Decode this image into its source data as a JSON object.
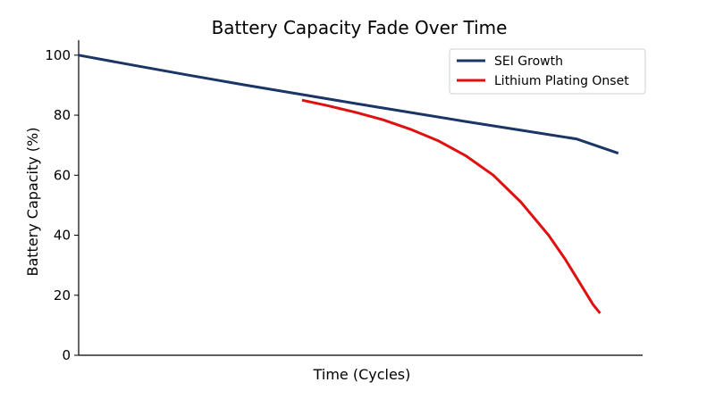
{
  "chart_data": {
    "type": "line",
    "title": "Battery Capacity Fade Over Time",
    "xlabel": "Time (Cycles)",
    "ylabel": "Battery Capacity (%)",
    "ylim": [
      0,
      105
    ],
    "xlim": [
      0,
      1.02
    ],
    "yticks": [
      0,
      20,
      40,
      60,
      80,
      100
    ],
    "xticks_shown": false,
    "grid": false,
    "legend_position": "top-right",
    "series": [
      {
        "name": "SEI Growth",
        "color": "#1b3566",
        "x": [
          0,
          0.1,
          0.2,
          0.3,
          0.4,
          0.5,
          0.6,
          0.7,
          0.8,
          0.9,
          0.976
        ],
        "y": [
          100,
          96.6,
          93.3,
          90.1,
          87.0,
          83.9,
          80.9,
          77.9,
          75.0,
          72.1,
          67.3
        ]
      },
      {
        "name": "Lithium Plating Onset",
        "color": "#e01010",
        "x": [
          0.404,
          0.45,
          0.5,
          0.55,
          0.6,
          0.65,
          0.7,
          0.75,
          0.8,
          0.85,
          0.88,
          0.91,
          0.93,
          0.943
        ],
        "y": [
          85.0,
          83.2,
          81.0,
          78.5,
          75.3,
          71.5,
          66.5,
          60.0,
          51.0,
          40.0,
          32.0,
          23.0,
          17.0,
          14.0
        ]
      }
    ]
  }
}
